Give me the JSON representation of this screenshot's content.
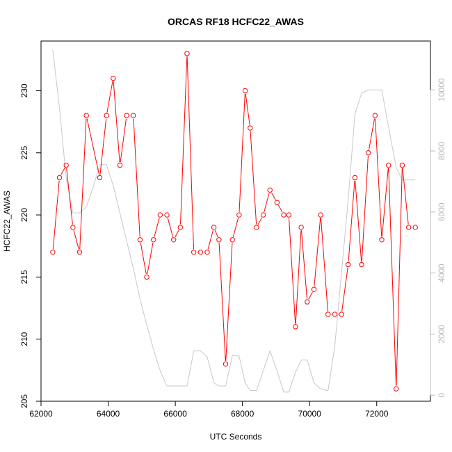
{
  "chart_data": {
    "type": "line",
    "title": "ORCAS RF18 HCFC22_AWAS",
    "xlabel": "UTC Seconds",
    "ylabel": "HCFC22_AWAS",
    "xlim": [
      62000,
      73600
    ],
    "ylim": [
      205,
      234
    ],
    "y2lim": [
      -200,
      11600
    ],
    "x_ticks": [
      62000,
      64000,
      66000,
      68000,
      70000,
      72000
    ],
    "x_tick_labels": [
      "62000",
      "64000",
      "66000",
      "68000",
      "70000",
      "72000"
    ],
    "y_ticks": [
      205,
      210,
      215,
      220,
      225,
      230
    ],
    "y_tick_labels": [
      "205",
      "210",
      "215",
      "220",
      "225",
      "230"
    ],
    "y2_ticks": [
      0,
      2000,
      4000,
      6000,
      8000,
      10000
    ],
    "y2_tick_labels": [
      "0",
      "2000",
      "4000",
      "6000",
      "8000",
      "10000"
    ],
    "grid": false,
    "colors": {
      "primary": "#ff0000",
      "secondary": "#c8c8c8",
      "frame": "#000000"
    },
    "series": [
      {
        "axis": "left",
        "style": "line-points",
        "x": [
          62350,
          62550,
          62750,
          62950,
          63150,
          63350,
          63750,
          63950,
          64150,
          64350,
          64550,
          64750,
          64950,
          65150,
          65350,
          65550,
          65750,
          65950,
          66150,
          66350,
          66550,
          66750,
          66950,
          67150,
          67300,
          67500,
          67700,
          67900,
          68080,
          68230,
          68420,
          68620,
          68820,
          69030,
          69230,
          69380,
          69580,
          69750,
          69930,
          70130,
          70330,
          70550,
          70750,
          70950,
          71150,
          71350,
          71550,
          71750,
          71950,
          72150,
          72350,
          72580,
          72760,
          72950,
          73150
        ],
        "y": [
          217,
          223,
          224,
          219,
          217,
          228,
          223,
          228,
          231,
          224,
          228,
          228,
          218,
          215,
          218,
          220,
          220,
          218,
          219,
          233,
          217,
          217,
          217,
          219,
          218,
          208,
          218,
          220,
          230,
          227,
          219,
          220,
          222,
          221,
          220,
          220,
          211,
          219,
          213,
          214,
          220,
          212,
          212,
          212,
          216,
          223,
          216,
          225,
          228,
          218,
          224,
          206,
          224,
          219,
          219
        ]
      },
      {
        "axis": "right",
        "style": "line",
        "x": [
          62350,
          62550,
          62750,
          62950,
          63150,
          63350,
          63550,
          63750,
          63950,
          64150,
          64350,
          64550,
          64750,
          64950,
          65150,
          65350,
          65550,
          65750,
          65950,
          66150,
          66350,
          66550,
          66750,
          66950,
          67150,
          67300,
          67500,
          67700,
          67900,
          68080,
          68230,
          68420,
          68620,
          68820,
          69030,
          69230,
          69380,
          69580,
          69750,
          69930,
          70130,
          70330,
          70550,
          70750,
          70950,
          71150,
          71350,
          71550,
          71750,
          71950,
          72150,
          72350,
          72580,
          72760,
          72950,
          73150
        ],
        "y": [
          11300,
          9400,
          7100,
          5970,
          5970,
          6170,
          6800,
          7550,
          7550,
          6870,
          5970,
          5050,
          4150,
          3150,
          2300,
          1500,
          800,
          300,
          300,
          300,
          300,
          1450,
          1450,
          1250,
          400,
          300,
          300,
          1300,
          1280,
          400,
          150,
          150,
          800,
          1450,
          800,
          100,
          100,
          750,
          1150,
          1150,
          400,
          200,
          150,
          1600,
          4000,
          6400,
          9200,
          9900,
          10000,
          10000,
          10000,
          8800,
          7450,
          7050,
          7050,
          7050
        ]
      }
    ]
  }
}
